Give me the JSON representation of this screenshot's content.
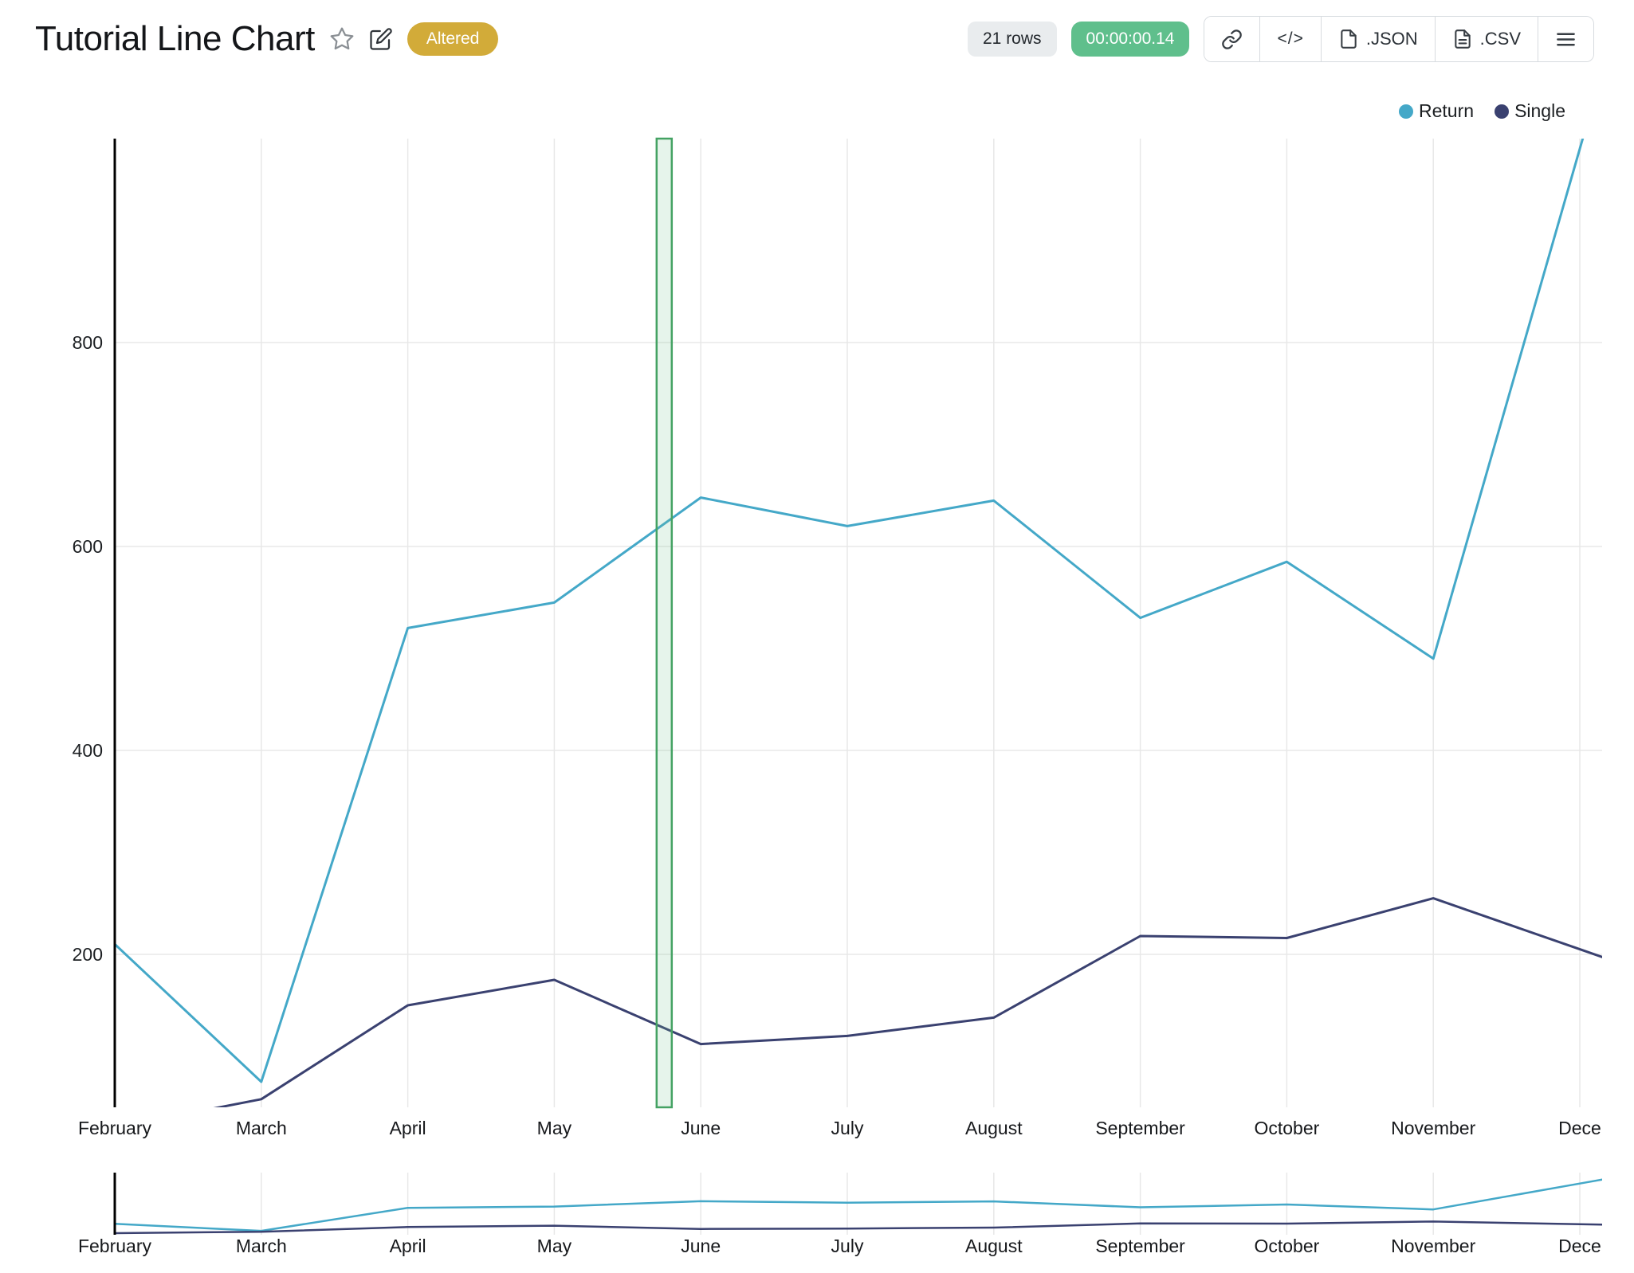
{
  "header": {
    "title": "Tutorial Line Chart",
    "altered_badge": "Altered",
    "rows_badge": "21 rows",
    "timer_badge": "00:00:00.14",
    "toolbar": {
      "code_label": "</>",
      "json_label": ".JSON",
      "csv_label": ".CSV"
    }
  },
  "legend": [
    {
      "label": "Return"
    },
    {
      "label": "Single"
    }
  ],
  "chart_data": {
    "type": "line",
    "title": "Tutorial Line Chart",
    "categories": [
      "February",
      "March",
      "April",
      "May",
      "June",
      "July",
      "August",
      "September",
      "October",
      "November",
      "Dece"
    ],
    "series": [
      {
        "name": "Return",
        "color": "#44a8c8",
        "values": [
          210,
          75,
          520,
          545,
          648,
          620,
          645,
          530,
          585,
          490,
          990
        ]
      },
      {
        "name": "Single",
        "color": "#3a4170",
        "values": [
          30,
          58,
          150,
          175,
          112,
          120,
          138,
          218,
          216,
          255,
          205
        ]
      }
    ],
    "yticks": [
      200,
      400,
      600,
      800
    ],
    "ylim": [
      50,
      1000
    ],
    "xlabel": "",
    "ylabel": "",
    "grid": true,
    "legend_position": "top-right",
    "highlight_band": {
      "between": [
        "May",
        "June"
      ],
      "position": 0.75,
      "width": 19
    },
    "has_minimap": true,
    "minimap_ylim": [
      0,
      1200
    ]
  },
  "colors": {
    "grid": "#e8e8e8",
    "axis": "#000000",
    "band_fill": "rgba(118,192,143,0.18)",
    "band_stroke": "#44a263",
    "altered_badge_bg": "#d2ab39",
    "timer_badge_bg": "#5fbf8c",
    "return_line": "#44a8c8",
    "single_line": "#3a4170"
  }
}
